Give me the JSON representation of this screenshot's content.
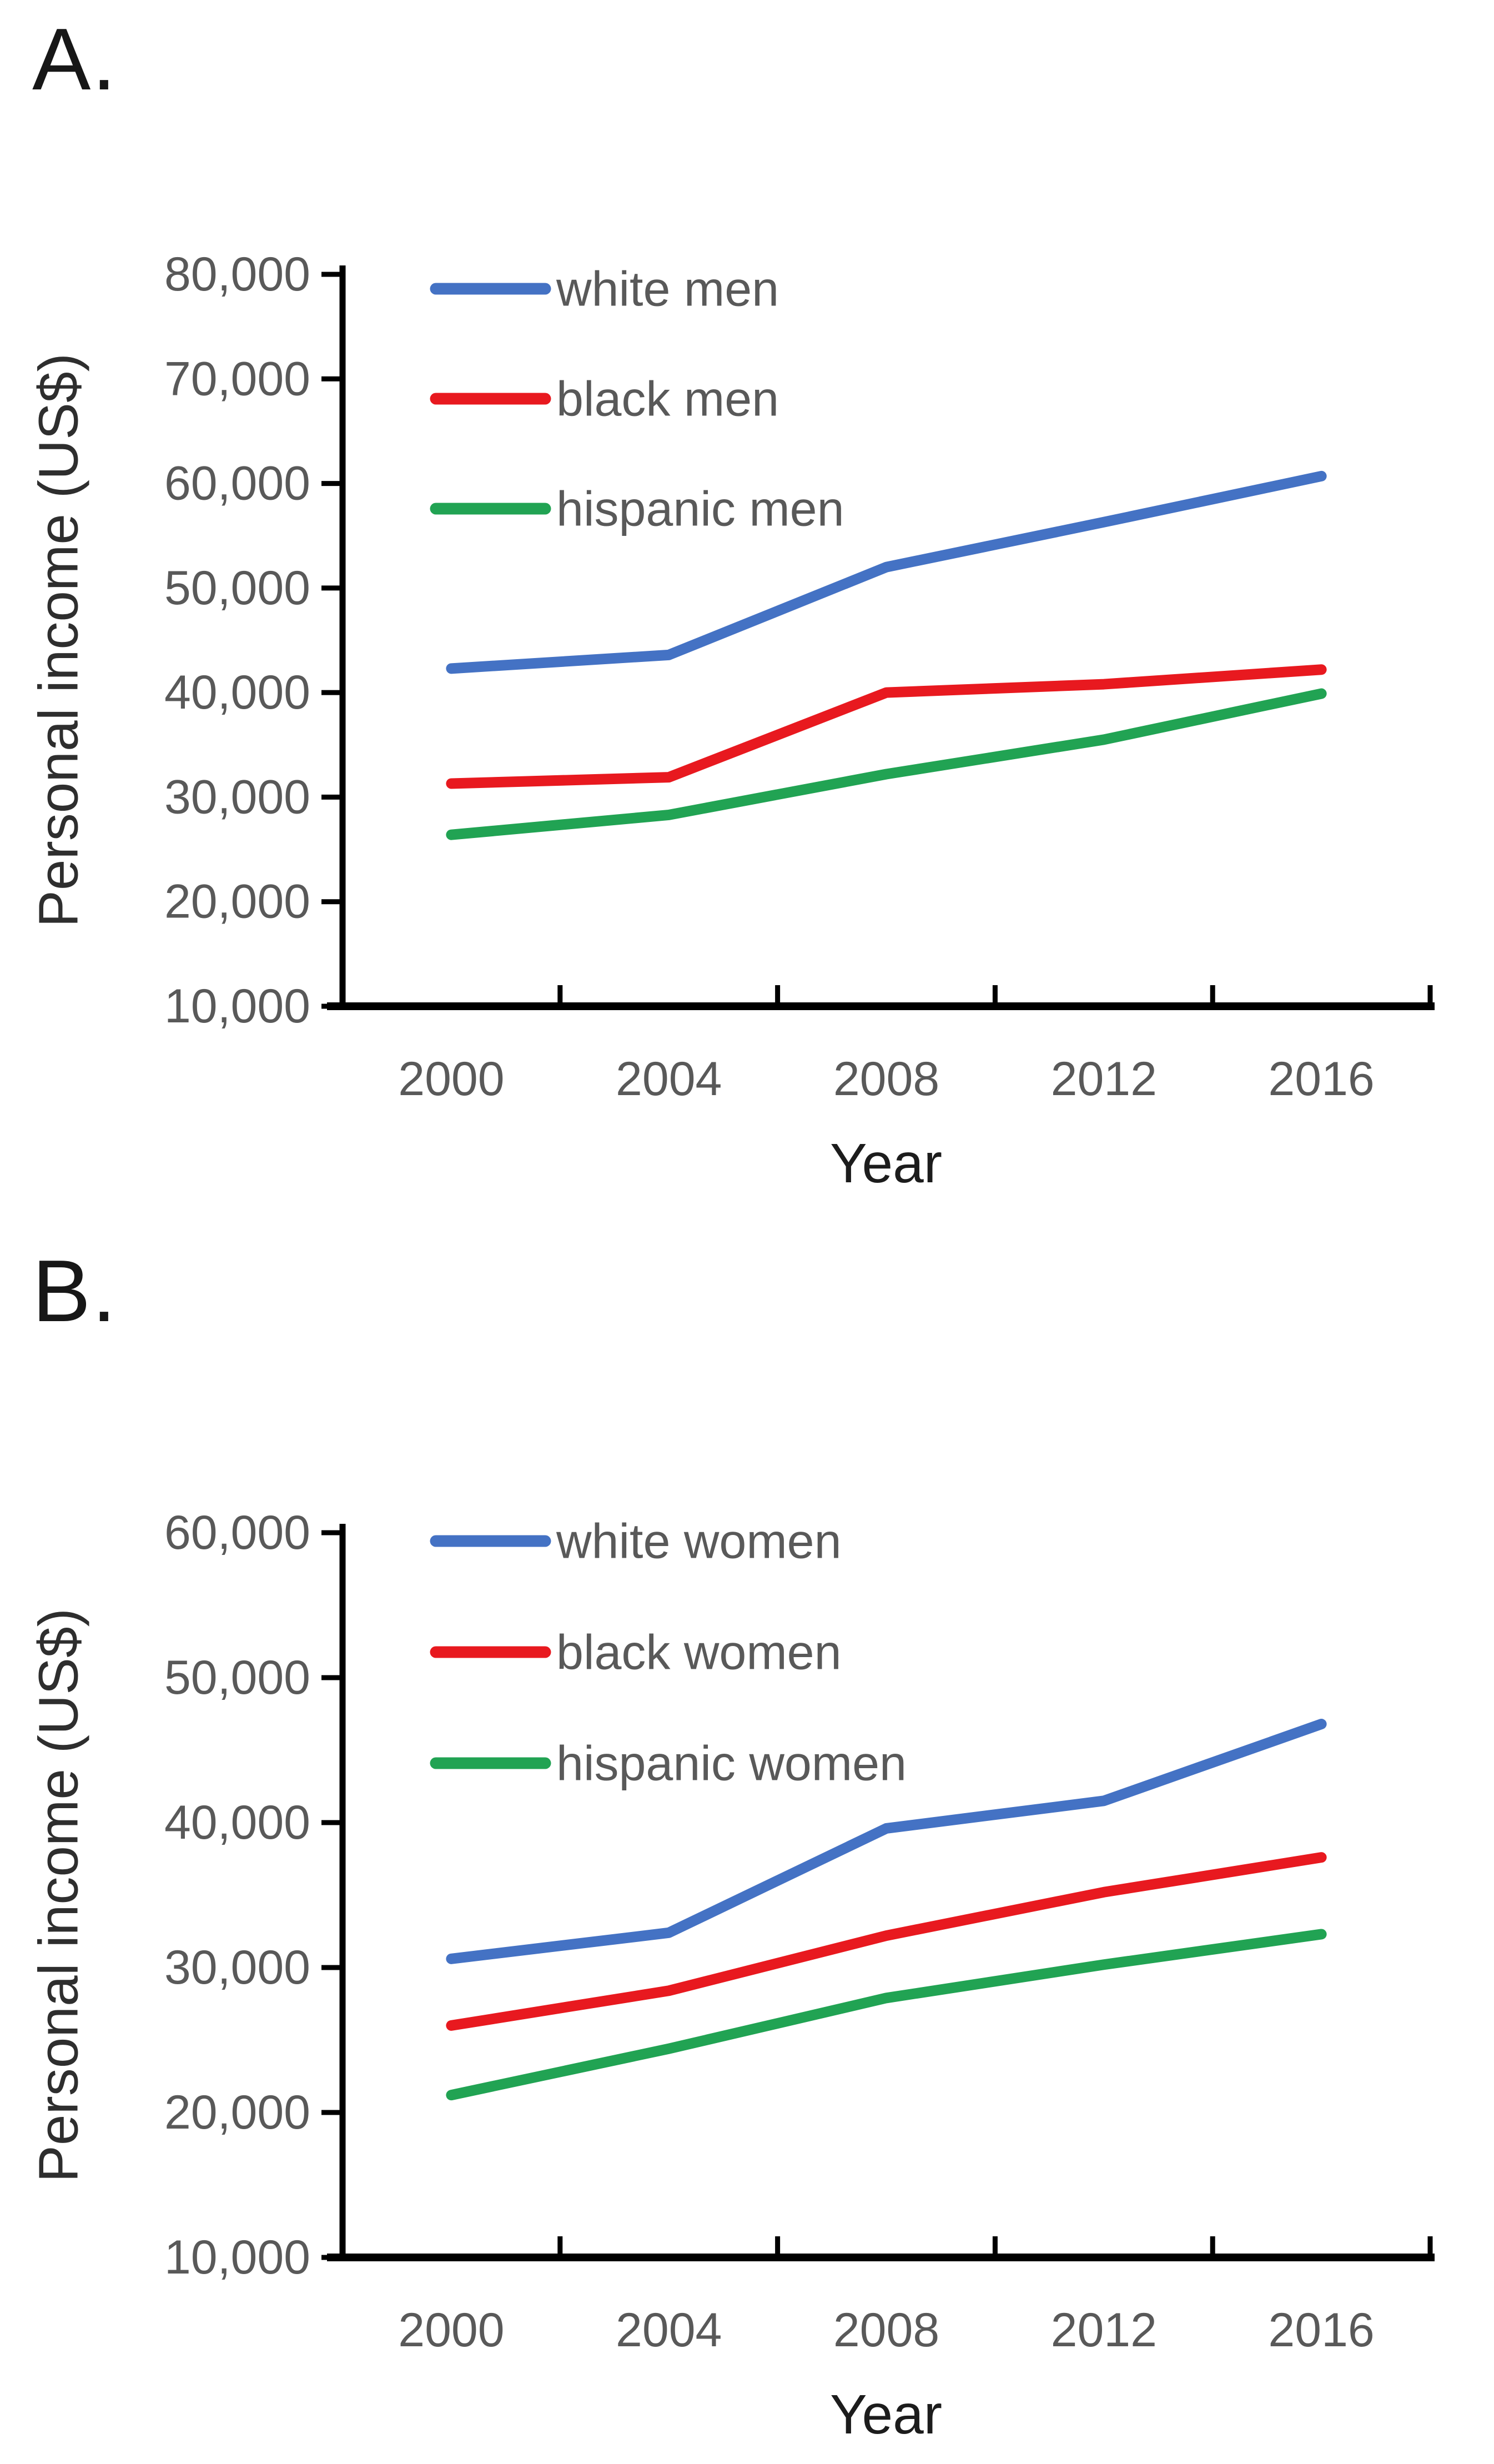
{
  "page": {
    "background": "#ffffff",
    "axis_color": "#000000",
    "tick_text_color": "#595959",
    "title_text_color": "#1c1c1c"
  },
  "panels": [
    {
      "label": "A.",
      "y_axis_title": "Personal income (US$)",
      "x_axis_title": "Year"
    },
    {
      "label": "B.",
      "y_axis_title": "Personal income (US$)",
      "x_axis_title": "Year"
    }
  ],
  "chart_data": [
    {
      "type": "line",
      "title": "",
      "xlabel": "Year",
      "ylabel": "Personal income (US$)",
      "categories": [
        2000,
        2004,
        2008,
        2012,
        2016
      ],
      "xtick_labels": [
        "2000",
        "2004",
        "2008",
        "2012",
        "2016"
      ],
      "ylim": [
        10000,
        80000
      ],
      "ytick_step": 10000,
      "ytick_labels": [
        "80,000",
        "70,000",
        "60,000",
        "50,000",
        "40,000",
        "30,000",
        "20,000",
        "10,000"
      ],
      "grid": false,
      "legend_position": "top-left-inside",
      "series": [
        {
          "name": "white men",
          "color": "#4472c4",
          "values": [
            42300,
            43600,
            52000,
            56300,
            60700
          ]
        },
        {
          "name": "black men",
          "color": "#e8191f",
          "values": [
            31300,
            31900,
            40000,
            40800,
            42200
          ]
        },
        {
          "name": "hispanic men",
          "color": "#21a353",
          "values": [
            26400,
            28300,
            32200,
            35500,
            39900
          ]
        }
      ]
    },
    {
      "type": "line",
      "title": "",
      "xlabel": "Year",
      "ylabel": "Personal income (US$)",
      "categories": [
        2000,
        2004,
        2008,
        2012,
        2016
      ],
      "xtick_labels": [
        "2000",
        "2004",
        "2008",
        "2012",
        "2016"
      ],
      "ylim": [
        10000,
        60000
      ],
      "ytick_step": 10000,
      "ytick_labels": [
        "60,000",
        "50,000",
        "40,000",
        "30,000",
        "20,000",
        "10,000"
      ],
      "grid": false,
      "legend_position": "top-left-inside",
      "series": [
        {
          "name": "white women",
          "color": "#4472c4",
          "values": [
            30600,
            32400,
            39600,
            41500,
            46800
          ]
        },
        {
          "name": "black women",
          "color": "#e8191f",
          "values": [
            26000,
            28400,
            32200,
            35200,
            37600
          ]
        },
        {
          "name": "hispanic women",
          "color": "#21a353",
          "values": [
            21200,
            24400,
            27900,
            30200,
            32300
          ]
        }
      ]
    }
  ]
}
